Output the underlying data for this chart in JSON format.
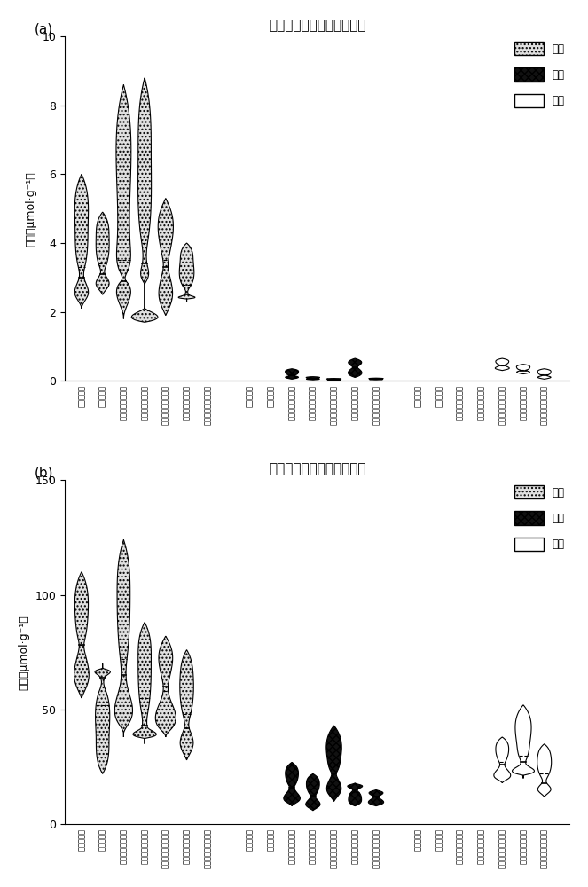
{
  "title_a": "小肠中的乙酸、丙酸和丁酸",
  "title_b": "盲肠中的乙酸、丙酸和丁酸",
  "ylabel": "浓度（μmol·g⁻¹）",
  "legend_labels": [
    "乙酸",
    "丙酸",
    "丁酸"
  ],
  "x_labels": [
    "空白对照组",
    "抑郁模型组",
    "乙酰化淨粉干预组",
    "丙酰化淨粉干预组",
    "异丁酰化淨粉干预组",
    "丁酰化淨粉干预组",
    "异戊酰化淨粉干预组"
  ],
  "panel_a": {
    "acetic": [
      {
        "min": 2.1,
        "q1": 2.5,
        "median": 3.0,
        "q3": 4.5,
        "max": 6.0,
        "mean": 3.3
      },
      {
        "min": 2.5,
        "q1": 2.8,
        "median": 3.1,
        "q3": 4.2,
        "max": 4.9,
        "mean": 3.4
      },
      {
        "min": 1.8,
        "q1": 2.7,
        "median": 2.9,
        "q3": 4.0,
        "max": 8.6,
        "mean": 3.5
      },
      {
        "min": 1.7,
        "q1": 2.0,
        "median": 3.4,
        "q3": 6.5,
        "max": 8.8,
        "mean": 4.0
      },
      {
        "min": 1.9,
        "q1": 2.4,
        "median": 3.3,
        "q3": 4.8,
        "max": 5.3,
        "mean": 3.5
      },
      {
        "min": 2.3,
        "q1": 2.4,
        "median": 2.5,
        "q3": 3.5,
        "max": 4.0,
        "mean": 2.8
      },
      {
        "min": 0.0,
        "q1": 0.0,
        "median": 0.0,
        "q3": 0.0,
        "max": 0.0,
        "mean": 0.0
      }
    ],
    "propionic": [
      {
        "min": 0.0,
        "q1": 0.0,
        "median": 0.0,
        "q3": 0.0,
        "max": 0.0,
        "mean": 0.0
      },
      {
        "min": 0.0,
        "q1": 0.0,
        "median": 0.0,
        "q3": 0.0,
        "max": 0.0,
        "mean": 0.0
      },
      {
        "min": 0.05,
        "q1": 0.1,
        "median": 0.15,
        "q3": 0.25,
        "max": 0.35,
        "mean": 0.16
      },
      {
        "min": 0.03,
        "q1": 0.05,
        "median": 0.07,
        "q3": 0.09,
        "max": 0.12,
        "mean": 0.07
      },
      {
        "min": 0.02,
        "q1": 0.03,
        "median": 0.04,
        "q3": 0.05,
        "max": 0.07,
        "mean": 0.04
      },
      {
        "min": 0.1,
        "q1": 0.2,
        "median": 0.4,
        "q3": 0.55,
        "max": 0.65,
        "mean": 0.38
      },
      {
        "min": 0.03,
        "q1": 0.04,
        "median": 0.05,
        "q3": 0.06,
        "max": 0.08,
        "mean": 0.05
      }
    ],
    "butyric": [
      {
        "min": 0.0,
        "q1": 0.0,
        "median": 0.0,
        "q3": 0.0,
        "max": 0.0,
        "mean": 0.0
      },
      {
        "min": 0.0,
        "q1": 0.0,
        "median": 0.0,
        "q3": 0.0,
        "max": 0.0,
        "mean": 0.0
      },
      {
        "min": 0.0,
        "q1": 0.0,
        "median": 0.0,
        "q3": 0.0,
        "max": 0.0,
        "mean": 0.0
      },
      {
        "min": 0.0,
        "q1": 0.0,
        "median": 0.0,
        "q3": 0.0,
        "max": 0.0,
        "mean": 0.0
      },
      {
        "min": 0.3,
        "q1": 0.35,
        "median": 0.45,
        "q3": 0.55,
        "max": 0.65,
        "mean": 0.45
      },
      {
        "min": 0.2,
        "q1": 0.25,
        "median": 0.3,
        "q3": 0.38,
        "max": 0.48,
        "mean": 0.32
      },
      {
        "min": 0.05,
        "q1": 0.1,
        "median": 0.15,
        "q3": 0.25,
        "max": 0.35,
        "mean": 0.18
      }
    ]
  },
  "panel_b": {
    "acetic": [
      {
        "min": 55,
        "q1": 62,
        "median": 78,
        "q3": 92,
        "max": 110,
        "mean": 78
      },
      {
        "min": 22,
        "q1": 38,
        "median": 64,
        "q3": 67,
        "max": 70,
        "mean": 52
      },
      {
        "min": 38,
        "q1": 45,
        "median": 65,
        "q3": 100,
        "max": 124,
        "mean": 72
      },
      {
        "min": 35,
        "q1": 38,
        "median": 43,
        "q3": 72,
        "max": 88,
        "mean": 55
      },
      {
        "min": 38,
        "q1": 42,
        "median": 60,
        "q3": 75,
        "max": 82,
        "mean": 58
      },
      {
        "min": 28,
        "q1": 35,
        "median": 42,
        "q3": 65,
        "max": 76,
        "mean": 48
      },
      {
        "min": 0.0,
        "q1": 0.0,
        "median": 0.0,
        "q3": 0.0,
        "max": 0.0,
        "mean": 0.0
      }
    ],
    "propionic": [
      {
        "min": 0.0,
        "q1": 0.0,
        "median": 0.0,
        "q3": 0.0,
        "max": 0.0,
        "mean": 0.0
      },
      {
        "min": 0.0,
        "q1": 0.0,
        "median": 0.0,
        "q3": 0.0,
        "max": 0.0,
        "mean": 0.0
      },
      {
        "min": 8,
        "q1": 10,
        "median": 16,
        "q3": 22,
        "max": 27,
        "mean": 16
      },
      {
        "min": 6,
        "q1": 8,
        "median": 12,
        "q3": 18,
        "max": 22,
        "mean": 13
      },
      {
        "min": 10,
        "q1": 14,
        "median": 22,
        "q3": 28,
        "max": 43,
        "mean": 22
      },
      {
        "min": 8,
        "q1": 11,
        "median": 15,
        "q3": 17,
        "max": 18,
        "mean": 14
      },
      {
        "min": 8,
        "q1": 9,
        "median": 12,
        "q3": 14,
        "max": 15,
        "mean": 12
      }
    ],
    "butyric": [
      {
        "min": 0.0,
        "q1": 0.0,
        "median": 0.0,
        "q3": 0.0,
        "max": 0.0,
        "mean": 0.0
      },
      {
        "min": 0.0,
        "q1": 0.0,
        "median": 0.0,
        "q3": 0.0,
        "max": 0.0,
        "mean": 0.0
      },
      {
        "min": 0.0,
        "q1": 0.0,
        "median": 0.0,
        "q3": 0.0,
        "max": 0.0,
        "mean": 0.0
      },
      {
        "min": 0.0,
        "q1": 0.0,
        "median": 0.0,
        "q3": 0.0,
        "max": 0.0,
        "mean": 0.0
      },
      {
        "min": 18,
        "q1": 20,
        "median": 26,
        "q3": 33,
        "max": 38,
        "mean": 27
      },
      {
        "min": 20,
        "q1": 22,
        "median": 27,
        "q3": 35,
        "max": 52,
        "mean": 30
      },
      {
        "min": 12,
        "q1": 15,
        "median": 18,
        "q3": 30,
        "max": 35,
        "mean": 22
      }
    ]
  }
}
